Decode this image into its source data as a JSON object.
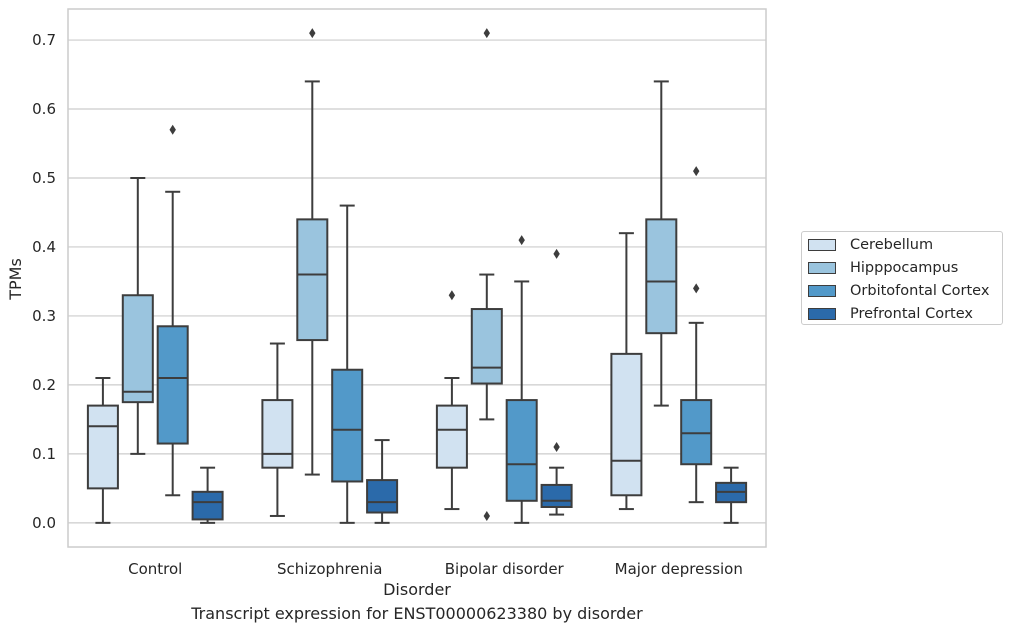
{
  "caption": "Transcript expression for ENST00000623380 by disorder",
  "chart_data": {
    "type": "box",
    "xlabel": "Disorder",
    "ylabel": "TPMs",
    "ylim": [
      -0.035,
      0.745
    ],
    "yticks": [
      0.0,
      0.1,
      0.2,
      0.3,
      0.4,
      0.5,
      0.6,
      0.7
    ],
    "ytick_labels": [
      "0.0",
      "0.1",
      "0.2",
      "0.3",
      "0.4",
      "0.5",
      "0.6",
      "0.7"
    ],
    "grid": "horizontal",
    "legend_position": "right",
    "categories": [
      "Control",
      "Schizophrenia",
      "Bipolar disorder",
      "Major depression"
    ],
    "series": [
      {
        "name": "Cerebellum",
        "color": "#d1e2f1",
        "boxes": [
          {
            "whislo": 0.0,
            "q1": 0.05,
            "med": 0.14,
            "q3": 0.17,
            "whishi": 0.21,
            "fliers": []
          },
          {
            "whislo": 0.01,
            "q1": 0.08,
            "med": 0.1,
            "q3": 0.178,
            "whishi": 0.26,
            "fliers": []
          },
          {
            "whislo": 0.02,
            "q1": 0.08,
            "med": 0.135,
            "q3": 0.17,
            "whishi": 0.21,
            "fliers": [
              0.33
            ]
          },
          {
            "whislo": 0.02,
            "q1": 0.04,
            "med": 0.09,
            "q3": 0.245,
            "whishi": 0.42,
            "fliers": []
          }
        ]
      },
      {
        "name": "Hipppocampus",
        "color": "#9ac4de",
        "boxes": [
          {
            "whislo": 0.1,
            "q1": 0.175,
            "med": 0.19,
            "q3": 0.33,
            "whishi": 0.5,
            "fliers": []
          },
          {
            "whislo": 0.07,
            "q1": 0.265,
            "med": 0.36,
            "q3": 0.44,
            "whishi": 0.64,
            "fliers": [
              0.71
            ]
          },
          {
            "whislo": 0.15,
            "q1": 0.202,
            "med": 0.225,
            "q3": 0.31,
            "whishi": 0.36,
            "fliers": [
              0.71,
              0.01
            ]
          },
          {
            "whislo": 0.17,
            "q1": 0.275,
            "med": 0.35,
            "q3": 0.44,
            "whishi": 0.64,
            "fliers": []
          }
        ]
      },
      {
        "name": "Orbitofontal Cortex",
        "color": "#5299c9",
        "boxes": [
          {
            "whislo": 0.04,
            "q1": 0.115,
            "med": 0.21,
            "q3": 0.285,
            "whishi": 0.48,
            "fliers": [
              0.57
            ]
          },
          {
            "whislo": 0.0,
            "q1": 0.06,
            "med": 0.135,
            "q3": 0.222,
            "whishi": 0.46,
            "fliers": []
          },
          {
            "whislo": 0.0,
            "q1": 0.032,
            "med": 0.085,
            "q3": 0.178,
            "whishi": 0.35,
            "fliers": [
              0.41
            ]
          },
          {
            "whislo": 0.03,
            "q1": 0.085,
            "med": 0.13,
            "q3": 0.178,
            "whishi": 0.29,
            "fliers": [
              0.51,
              0.34
            ]
          }
        ]
      },
      {
        "name": "Prefrontal Cortex",
        "color": "#2b6aaa",
        "boxes": [
          {
            "whislo": 0.0,
            "q1": 0.005,
            "med": 0.03,
            "q3": 0.045,
            "whishi": 0.08,
            "fliers": []
          },
          {
            "whislo": 0.0,
            "q1": 0.015,
            "med": 0.03,
            "q3": 0.062,
            "whishi": 0.12,
            "fliers": []
          },
          {
            "whislo": 0.012,
            "q1": 0.023,
            "med": 0.032,
            "q3": 0.055,
            "whishi": 0.08,
            "fliers": [
              0.39,
              0.11
            ]
          },
          {
            "whislo": 0.0,
            "q1": 0.03,
            "med": 0.045,
            "q3": 0.058,
            "whishi": 0.08,
            "fliers": []
          }
        ]
      }
    ]
  }
}
